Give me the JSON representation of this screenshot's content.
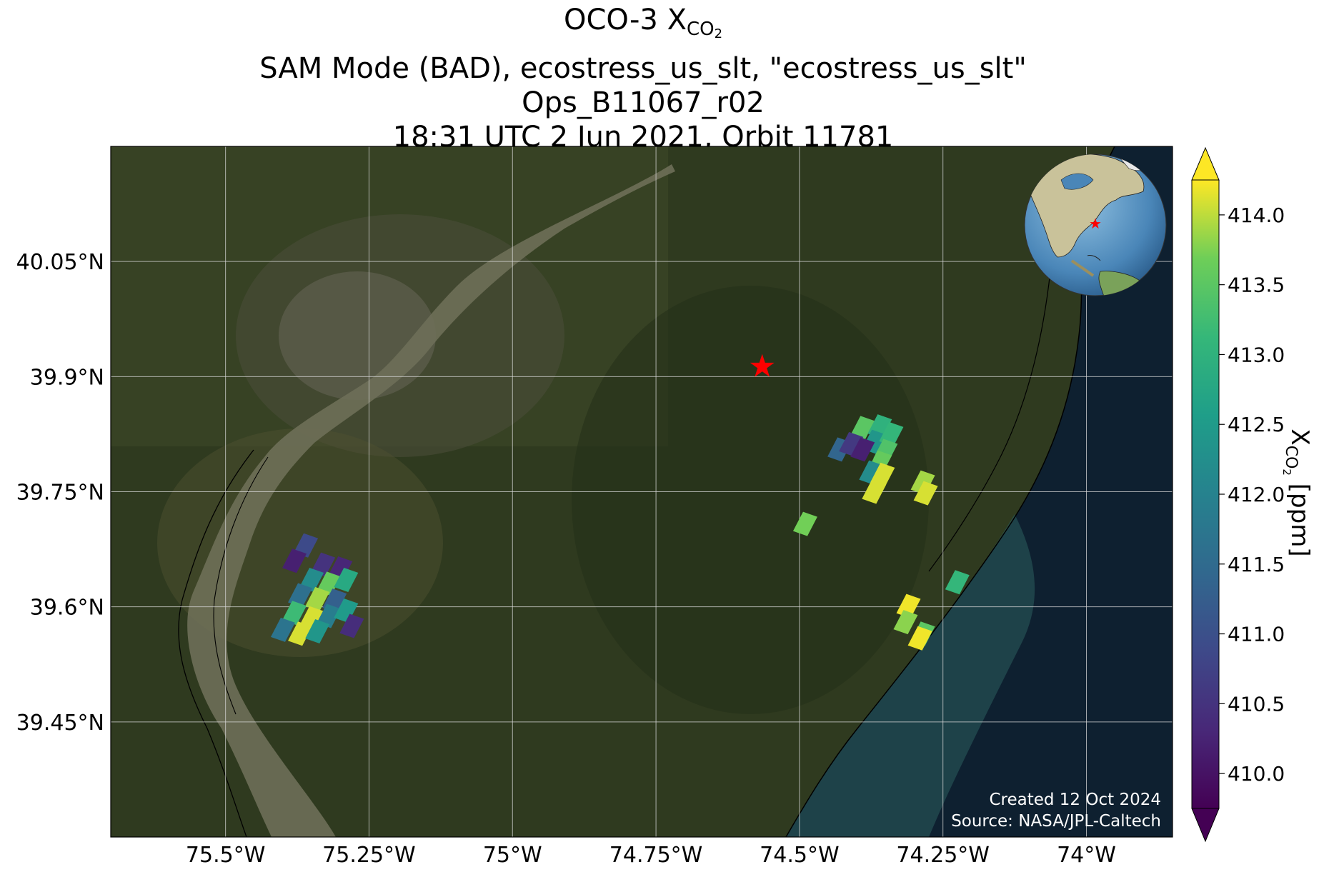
{
  "title": {
    "line1_prefix": "OCO-3 X",
    "line1_sub": "CO",
    "line1_subsub": "2",
    "line2": "SAM Mode (BAD), ecostress_us_slt, \"ecostress_us_slt\"",
    "line3": "Ops_B11067_r02",
    "line4": "18:31 UTC 2 Jun 2021, Orbit 11781"
  },
  "map": {
    "lon_range": [
      -75.7,
      -73.85
    ],
    "lat_range": [
      39.3,
      40.2
    ],
    "x_ticks": [
      {
        "value": -75.5,
        "label": "75.5°W"
      },
      {
        "value": -75.25,
        "label": "75.25°W"
      },
      {
        "value": -75.0,
        "label": "75°W"
      },
      {
        "value": -74.75,
        "label": "74.75°W"
      },
      {
        "value": -74.5,
        "label": "74.5°W"
      },
      {
        "value": -74.25,
        "label": "74.25°W"
      },
      {
        "value": -74.0,
        "label": "74°W"
      }
    ],
    "y_ticks": [
      {
        "value": 40.05,
        "label": "40.05°N"
      },
      {
        "value": 39.9,
        "label": "39.9°N"
      },
      {
        "value": 39.75,
        "label": "39.75°N"
      },
      {
        "value": 39.6,
        "label": "39.6°N"
      },
      {
        "value": 39.45,
        "label": "39.45°N"
      }
    ],
    "target": {
      "lon": -74.565,
      "lat": 39.913,
      "color": "#ff0000"
    },
    "credit_line1": "Created 12 Oct 2024",
    "credit_line2": "Source: NASA/JPL-Caltech",
    "inset_marker_color": "#ff0000"
  },
  "colorbar": {
    "label_prefix": "X",
    "label_sub": "CO",
    "label_subsub": "2",
    "label_suffix": " [ppm]",
    "range": [
      409.75,
      414.25
    ],
    "colormap": "viridis",
    "extend": "both",
    "ticks": [
      {
        "value": 410.0,
        "label": "410.0"
      },
      {
        "value": 410.5,
        "label": "410.5"
      },
      {
        "value": 411.0,
        "label": "411.0"
      },
      {
        "value": 411.5,
        "label": "411.5"
      },
      {
        "value": 412.0,
        "label": "412.0"
      },
      {
        "value": 412.5,
        "label": "412.5"
      },
      {
        "value": 413.0,
        "label": "413.0"
      },
      {
        "value": 413.5,
        "label": "413.5"
      },
      {
        "value": 414.0,
        "label": "414.0"
      }
    ]
  },
  "soundings": [
    {
      "lon": -75.36,
      "lat": 39.68,
      "xco2": 410.9
    },
    {
      "lon": -75.38,
      "lat": 39.66,
      "xco2": 410.2
    },
    {
      "lon": -75.33,
      "lat": 39.655,
      "xco2": 410.5
    },
    {
      "lon": -75.3,
      "lat": 39.65,
      "xco2": 410.3
    },
    {
      "lon": -75.35,
      "lat": 39.635,
      "xco2": 412.2
    },
    {
      "lon": -75.32,
      "lat": 39.63,
      "xco2": 413.6
    },
    {
      "lon": -75.29,
      "lat": 39.635,
      "xco2": 412.8
    },
    {
      "lon": -75.37,
      "lat": 39.615,
      "xco2": 411.6
    },
    {
      "lon": -75.34,
      "lat": 39.61,
      "xco2": 413.9
    },
    {
      "lon": -75.31,
      "lat": 39.608,
      "xco2": 411.3
    },
    {
      "lon": -75.38,
      "lat": 39.592,
      "xco2": 413.2
    },
    {
      "lon": -75.35,
      "lat": 39.585,
      "xco2": 414.1
    },
    {
      "lon": -75.32,
      "lat": 39.588,
      "xco2": 411.9
    },
    {
      "lon": -75.29,
      "lat": 39.595,
      "xco2": 412.5
    },
    {
      "lon": -75.4,
      "lat": 39.57,
      "xco2": 411.7
    },
    {
      "lon": -75.37,
      "lat": 39.565,
      "xco2": 414.1
    },
    {
      "lon": -75.34,
      "lat": 39.568,
      "xco2": 412.4
    },
    {
      "lon": -75.28,
      "lat": 39.575,
      "xco2": 410.4
    },
    {
      "lon": -74.39,
      "lat": 39.833,
      "xco2": 413.5
    },
    {
      "lon": -74.36,
      "lat": 39.835,
      "xco2": 413.0
    },
    {
      "lon": -74.37,
      "lat": 39.815,
      "xco2": 412.4
    },
    {
      "lon": -74.34,
      "lat": 39.825,
      "xco2": 413.1
    },
    {
      "lon": -74.43,
      "lat": 39.805,
      "xco2": 411.4
    },
    {
      "lon": -74.41,
      "lat": 39.812,
      "xco2": 410.6
    },
    {
      "lon": -74.39,
      "lat": 39.805,
      "xco2": 410.2
    },
    {
      "lon": -74.35,
      "lat": 39.803,
      "xco2": 413.4
    },
    {
      "lon": -74.36,
      "lat": 39.788,
      "xco2": 413.6
    },
    {
      "lon": -74.375,
      "lat": 39.775,
      "xco2": 412.2
    },
    {
      "lon": -74.355,
      "lat": 39.772,
      "xco2": 414.1
    },
    {
      "lon": -74.37,
      "lat": 39.75,
      "xco2": 414.1
    },
    {
      "lon": -74.285,
      "lat": 39.762,
      "xco2": 413.9
    },
    {
      "lon": -74.28,
      "lat": 39.748,
      "xco2": 414.1
    },
    {
      "lon": -74.49,
      "lat": 39.708,
      "xco2": 413.7
    },
    {
      "lon": -74.225,
      "lat": 39.632,
      "xco2": 413.1
    },
    {
      "lon": -74.31,
      "lat": 39.601,
      "xco2": 414.2
    },
    {
      "lon": -74.315,
      "lat": 39.58,
      "xco2": 413.8
    },
    {
      "lon": -74.285,
      "lat": 39.565,
      "xco2": 413.5
    },
    {
      "lon": -74.29,
      "lat": 39.559,
      "xco2": 414.2
    }
  ]
}
